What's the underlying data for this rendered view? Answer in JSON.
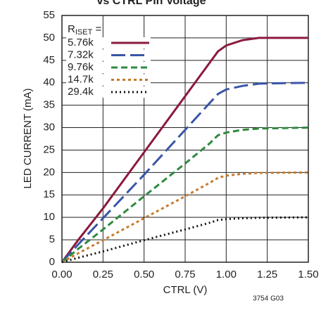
{
  "chart_data": {
    "type": "line",
    "title": "vs CTRL Pin Voltage",
    "x_label": "CTRL (V)",
    "y_label": "LED CURRENT (mA)",
    "footnote": "3754 G03",
    "legend_title": {
      "main": "R",
      "sub": "ISET",
      "tail": " ="
    },
    "legend": "upper-left",
    "grid": true,
    "xlim": [
      0,
      1.5
    ],
    "ylim": [
      0,
      55
    ],
    "xticks": [
      {
        "value": 0,
        "label": "0.00"
      },
      {
        "value": 0.25,
        "label": "0.25"
      },
      {
        "value": 0.5,
        "label": "0.50"
      },
      {
        "value": 0.75,
        "label": "0.75"
      },
      {
        "value": 1,
        "label": "1.00"
      },
      {
        "value": 1.25,
        "label": "1.25"
      },
      {
        "value": 1.5,
        "label": "1.50"
      }
    ],
    "yticks": [
      0,
      5,
      10,
      15,
      20,
      25,
      30,
      35,
      40,
      45,
      50,
      55
    ],
    "x": [
      0,
      0.05,
      0.1,
      0.25,
      0.5,
      0.75,
      0.9,
      0.95,
      1.0,
      1.1,
      1.2,
      1.5
    ],
    "series": [
      {
        "name": "5.76k",
        "color": "#8b1a3c",
        "dash": "none",
        "values": [
          0,
          2.5,
          5,
          12,
          24.5,
          37,
          44.5,
          47,
          48.3,
          49.5,
          50,
          50
        ]
      },
      {
        "name": "7.32k",
        "color": "#3a56a8",
        "dash": "20 7",
        "values": [
          0,
          2,
          4,
          9.8,
          19.5,
          29.5,
          35.5,
          37.5,
          38.5,
          39.3,
          39.8,
          40
        ]
      },
      {
        "name": "9.76k",
        "color": "#2f8a3f",
        "dash": "9 5",
        "values": [
          0,
          1.5,
          3,
          7.3,
          14.7,
          22,
          26.5,
          28.3,
          28.9,
          29.5,
          29.8,
          30
        ]
      },
      {
        "name": "14.7k",
        "color": "#c47b2d",
        "dash": "4 4",
        "values": [
          0,
          1,
          2,
          4.9,
          9.8,
          14.7,
          17.7,
          18.8,
          19.3,
          19.7,
          19.9,
          20
        ]
      },
      {
        "name": "29.4k",
        "color": "#111111",
        "dash": "2 4",
        "values": [
          0,
          0.5,
          1,
          2.4,
          4.9,
          7.3,
          8.8,
          9.4,
          9.6,
          9.8,
          9.9,
          10
        ]
      }
    ]
  }
}
